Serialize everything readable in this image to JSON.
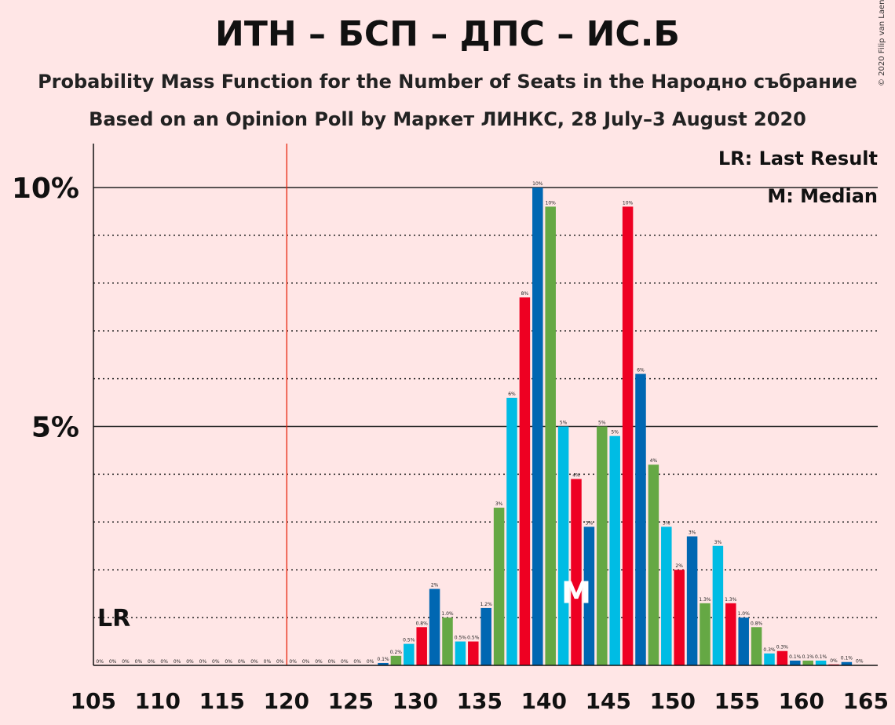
{
  "chart_data": {
    "type": "bar",
    "title": "ИТН – БСП – ДПС – ИС.Б",
    "subtitle": "Probability Mass Function for the Number of Seats in the Народно събрание",
    "subtitle2": "Based on an Opinion Poll by Маркет ЛИНКС, 28 July–3 August 2020",
    "copyright": "© 2020 Filip van Laenen",
    "legend": {
      "lr": "LR: Last Result",
      "median": "M: Median",
      "placement": "top-right"
    },
    "lr_label": "LR",
    "median_label": "M",
    "last_result_seat": 120,
    "median_seat": 143,
    "xlim": [
      105,
      165
    ],
    "ylim": [
      0,
      11
    ],
    "y_ticks": [
      {
        "value": 5,
        "label": "5%"
      },
      {
        "value": 10,
        "label": "10%"
      }
    ],
    "x_ticks": [
      105,
      110,
      115,
      120,
      125,
      130,
      135,
      140,
      145,
      150,
      155,
      160,
      165
    ],
    "colors": [
      "#0067B2",
      "#65A844",
      "#00BCE4",
      "#EE0022"
    ],
    "seats": [
      106,
      107,
      108,
      109,
      110,
      111,
      112,
      113,
      114,
      115,
      116,
      117,
      118,
      119,
      120,
      121,
      122,
      123,
      124,
      125,
      126,
      127,
      128,
      129,
      130,
      131,
      132,
      133,
      134,
      135,
      136,
      137,
      138,
      139,
      140,
      141,
      142,
      143,
      144,
      145,
      146,
      147,
      148,
      149,
      150,
      151,
      152,
      153,
      154,
      155,
      156,
      157,
      158,
      159,
      160,
      161,
      162,
      163,
      164,
      165
    ],
    "values": [
      0,
      0,
      0,
      0,
      0,
      0,
      0,
      0,
      0,
      0,
      0,
      0,
      0,
      0,
      0,
      0,
      0,
      0,
      0,
      0,
      0,
      0,
      0.05,
      0.2,
      0.45,
      0.8,
      1.6,
      1.0,
      0.5,
      0.5,
      1.2,
      3.3,
      5.6,
      7.7,
      10.0,
      9.6,
      5.0,
      3.9,
      2.9,
      5.0,
      4.8,
      9.6,
      6.1,
      4.2,
      2.9,
      2.0,
      2.7,
      1.3,
      2.5,
      1.3,
      1.0,
      0.8,
      0.25,
      0.3,
      0.1,
      0.1,
      0.1,
      0.02,
      0.07,
      0.01
    ],
    "value_labels": [
      "0%",
      "0%",
      "0%",
      "0%",
      "0%",
      "0%",
      "0%",
      "0%",
      "0%",
      "0%",
      "0%",
      "0%",
      "0%",
      "0%",
      "0%",
      "0%",
      "0%",
      "0%",
      "0%",
      "0%",
      "0%",
      "0%",
      "0.1%",
      "0.2%",
      "0.5%",
      "0.8%",
      "2%",
      "1.0%",
      "0.5%",
      "0.5%",
      "1.2%",
      "3%",
      "6%",
      "8%",
      "10%",
      "10%",
      "5%",
      "4%",
      "3%",
      "5%",
      "5%",
      "10%",
      "6%",
      "4%",
      "3%",
      "2%",
      "3%",
      "1.3%",
      "3%",
      "1.3%",
      "1.0%",
      "0.8%",
      "0.3%",
      "0.3%",
      "0.1%",
      "0.1%",
      "0.1%",
      "0%",
      "0.1%",
      "0%"
    ]
  }
}
